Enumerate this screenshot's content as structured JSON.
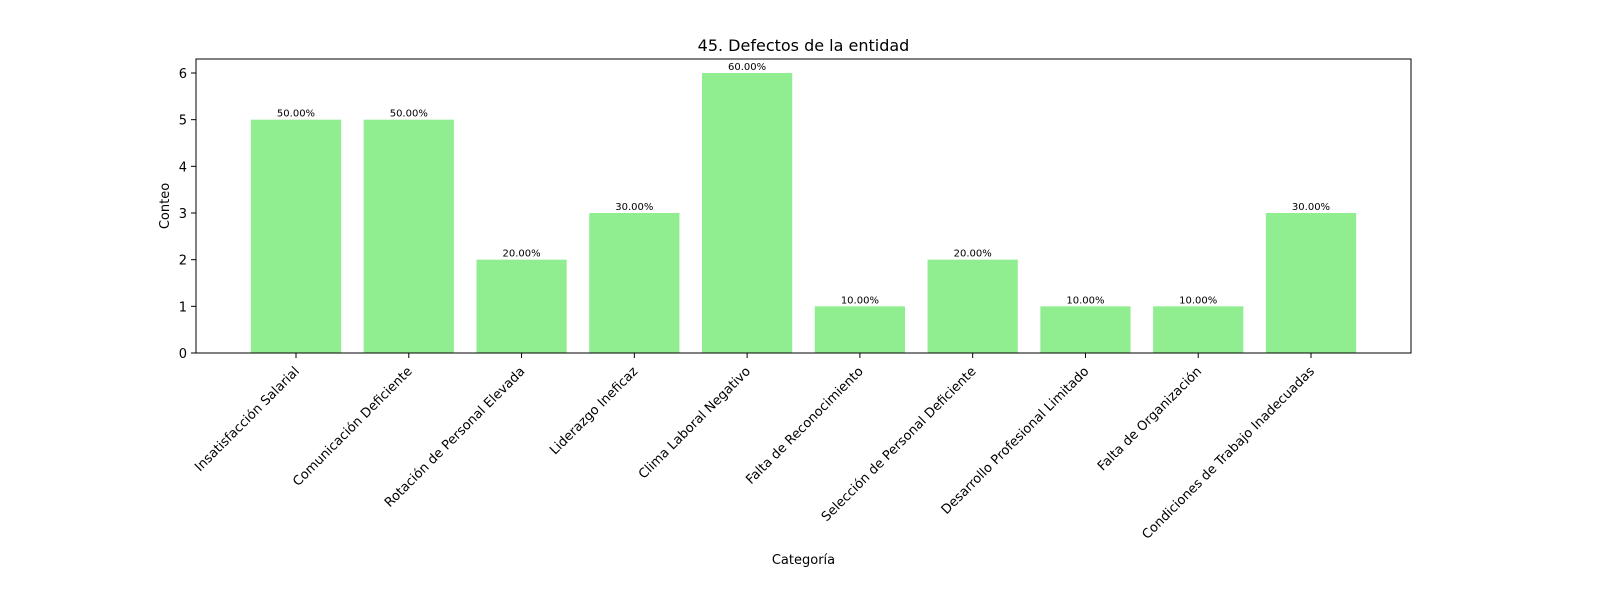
{
  "chart_data": {
    "type": "bar",
    "title": "45. Defectos de la entidad",
    "xlabel": "Categoría",
    "ylabel": "Conteo",
    "ylim": [
      0,
      6.3
    ],
    "yticks": [
      0,
      1,
      2,
      3,
      4,
      5,
      6
    ],
    "categories": [
      "Insatisfacción Salarial",
      "Comunicación Deficiente",
      "Rotación de Personal Elevada",
      "Liderazgo Ineficaz",
      "Clima Laboral Negativo",
      "Falta de Reconocimiento",
      "Selección de Personal Deficiente",
      "Desarrollo Profesional Limitado",
      "Falta de Organización",
      "Condiciones de Trabajo Inadecuadas"
    ],
    "values": [
      5,
      5,
      2,
      3,
      6,
      1,
      2,
      1,
      1,
      3
    ],
    "data_labels": [
      "50.00%",
      "50.00%",
      "20.00%",
      "30.00%",
      "60.00%",
      "10.00%",
      "20.00%",
      "10.00%",
      "10.00%",
      "30.00%"
    ],
    "bar_color": "#90ee90",
    "grid": false,
    "legend": false
  }
}
